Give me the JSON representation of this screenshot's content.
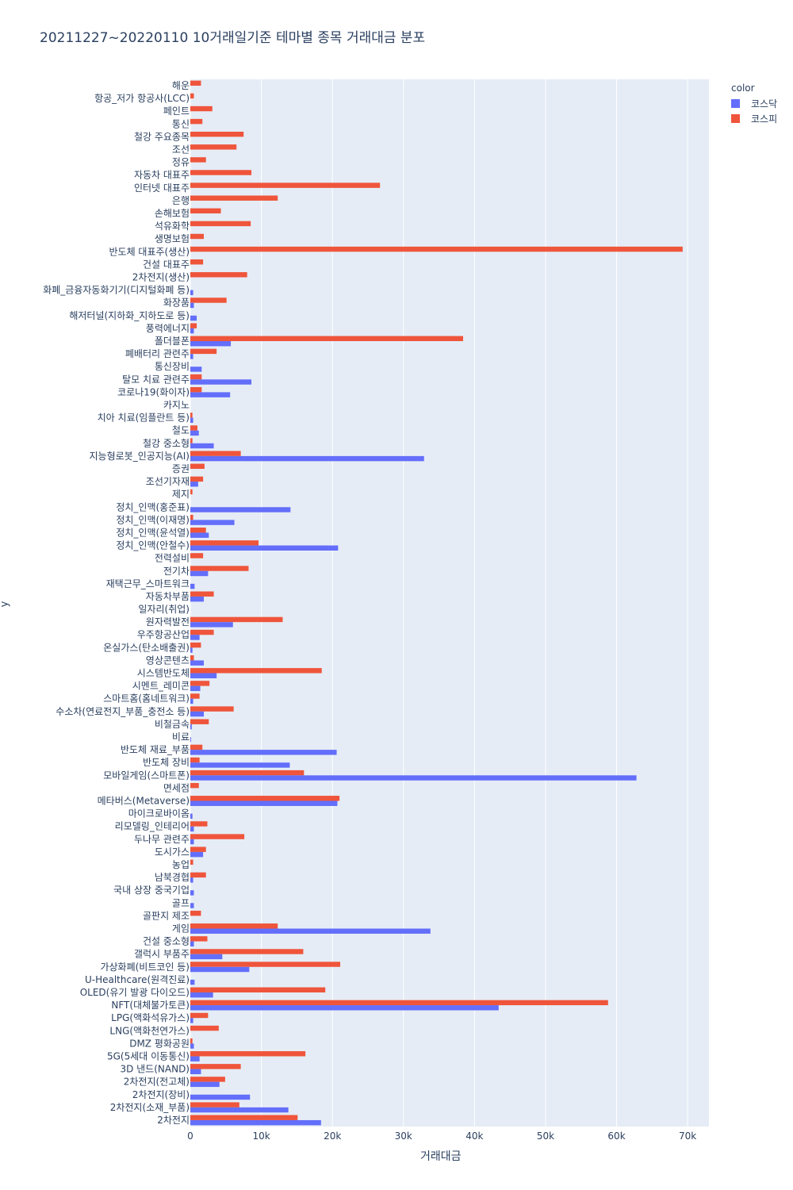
{
  "chart_data": {
    "type": "bar",
    "orientation": "horizontal",
    "barmode": "group",
    "title": "20211227~20220110 10거래일기준 테마별 종목 거래대금 분포",
    "xlabel": "거래대금",
    "ylabel": "y",
    "legend_title": "color",
    "legend_position": "top-right",
    "xlim": [
      0,
      73000
    ],
    "x_ticks": [
      0,
      10000,
      20000,
      30000,
      40000,
      50000,
      60000,
      70000
    ],
    "x_tick_labels": [
      "0",
      "10k",
      "20k",
      "30k",
      "40k",
      "50k",
      "60k",
      "70k"
    ],
    "grid": true,
    "series": [
      {
        "name": "코스닥",
        "color": "#636efa"
      },
      {
        "name": "코스피",
        "color": "#ef553b"
      }
    ],
    "categories": [
      {
        "label": "해운",
        "kosdaq": 0,
        "kospi": 1500
      },
      {
        "label": "항공_저가 항공사(LCC)",
        "kosdaq": 0,
        "kospi": 500
      },
      {
        "label": "페인트",
        "kosdaq": 0,
        "kospi": 3100
      },
      {
        "label": "통신",
        "kosdaq": 0,
        "kospi": 1700
      },
      {
        "label": "철강 주요종목",
        "kosdaq": 0,
        "kospi": 7500
      },
      {
        "label": "조선",
        "kosdaq": 0,
        "kospi": 6500
      },
      {
        "label": "정유",
        "kosdaq": 0,
        "kospi": 2200
      },
      {
        "label": "자동차 대표주",
        "kosdaq": 0,
        "kospi": 8600
      },
      {
        "label": "인터넷 대표주",
        "kosdaq": 0,
        "kospi": 26700
      },
      {
        "label": "은행",
        "kosdaq": 0,
        "kospi": 12300
      },
      {
        "label": "손해보험",
        "kosdaq": 0,
        "kospi": 4300
      },
      {
        "label": "석유화학",
        "kosdaq": 0,
        "kospi": 8500
      },
      {
        "label": "생명보험",
        "kosdaq": 0,
        "kospi": 1900
      },
      {
        "label": "반도체 대표주(생산)",
        "kosdaq": 0,
        "kospi": 69300
      },
      {
        "label": "건설 대표주",
        "kosdaq": 0,
        "kospi": 1800
      },
      {
        "label": "2차전지(생산)",
        "kosdaq": 0,
        "kospi": 8000
      },
      {
        "label": "화폐_금융자동화기기(디지털화폐 등)",
        "kosdaq": 400,
        "kospi": 0
      },
      {
        "label": "화장품",
        "kosdaq": 500,
        "kospi": 5100
      },
      {
        "label": "해저터널(지하화_지하도로 등)",
        "kosdaq": 900,
        "kospi": 0
      },
      {
        "label": "풍력에너지",
        "kosdaq": 500,
        "kospi": 900
      },
      {
        "label": "폴더블폰",
        "kosdaq": 5700,
        "kospi": 38400
      },
      {
        "label": "폐배터리 관련주",
        "kosdaq": 400,
        "kospi": 3700
      },
      {
        "label": "통신장비",
        "kosdaq": 1600,
        "kospi": 0
      },
      {
        "label": "탈모 치료 관련주",
        "kosdaq": 8600,
        "kospi": 1600
      },
      {
        "label": "코로나19(화이자)",
        "kosdaq": 5600,
        "kospi": 1600
      },
      {
        "label": "카지노",
        "kosdaq": 0,
        "kospi": 0
      },
      {
        "label": "치아 치료(임플란트 등)",
        "kosdaq": 400,
        "kospi": 300
      },
      {
        "label": "철도",
        "kosdaq": 1200,
        "kospi": 1000
      },
      {
        "label": "철강 중소형",
        "kosdaq": 3300,
        "kospi": 300
      },
      {
        "label": "지능형로봇_인공지능(AI)",
        "kosdaq": 32900,
        "kospi": 7100
      },
      {
        "label": "증권",
        "kosdaq": 0,
        "kospi": 2000
      },
      {
        "label": "조선기자재",
        "kosdaq": 1100,
        "kospi": 1800
      },
      {
        "label": "제지",
        "kosdaq": 0,
        "kospi": 300
      },
      {
        "label": "정치_인맥(홍준표)",
        "kosdaq": 14100,
        "kospi": 0
      },
      {
        "label": "정치_인맥(이재명)",
        "kosdaq": 6200,
        "kospi": 400
      },
      {
        "label": "정치_인맥(윤석열)",
        "kosdaq": 2600,
        "kospi": 2200
      },
      {
        "label": "정치_인맥(안철수)",
        "kosdaq": 20800,
        "kospi": 9600
      },
      {
        "label": "전력설비",
        "kosdaq": 0,
        "kospi": 1800
      },
      {
        "label": "전기차",
        "kosdaq": 2500,
        "kospi": 8200
      },
      {
        "label": "재택근무_스마트워크",
        "kosdaq": 600,
        "kospi": 0
      },
      {
        "label": "자동차부품",
        "kosdaq": 1900,
        "kospi": 3300
      },
      {
        "label": "일자리(취업)",
        "kosdaq": 0,
        "kospi": 0
      },
      {
        "label": "원자력발전",
        "kosdaq": 6000,
        "kospi": 13000
      },
      {
        "label": "우주항공산업",
        "kosdaq": 1300,
        "kospi": 3300
      },
      {
        "label": "온실가스(탄소배출권)",
        "kosdaq": 300,
        "kospi": 1500
      },
      {
        "label": "영상콘텐츠",
        "kosdaq": 1900,
        "kospi": 500
      },
      {
        "label": "시스템반도체",
        "kosdaq": 3700,
        "kospi": 18500
      },
      {
        "label": "시멘트_레미콘",
        "kosdaq": 1400,
        "kospi": 2700
      },
      {
        "label": "스마트홈(홈네트워크)",
        "kosdaq": 400,
        "kospi": 1300
      },
      {
        "label": "수소차(연료전지_부품_충전소 등)",
        "kosdaq": 1900,
        "kospi": 6100
      },
      {
        "label": "비철금속",
        "kosdaq": 200,
        "kospi": 2600
      },
      {
        "label": "비료",
        "kosdaq": 100,
        "kospi": 0
      },
      {
        "label": "반도체 재료_부품",
        "kosdaq": 20600,
        "kospi": 1700
      },
      {
        "label": "반도체 장비",
        "kosdaq": 14000,
        "kospi": 1300
      },
      {
        "label": "모바일게임(스마트폰)",
        "kosdaq": 62800,
        "kospi": 16000
      },
      {
        "label": "면세점",
        "kosdaq": 0,
        "kospi": 1200
      },
      {
        "label": "메타버스(Metaverse)",
        "kosdaq": 20700,
        "kospi": 21000
      },
      {
        "label": "마이크로바이옴",
        "kosdaq": 300,
        "kospi": 0
      },
      {
        "label": "리모델링_인테리어",
        "kosdaq": 500,
        "kospi": 2400
      },
      {
        "label": "두나무 관련주",
        "kosdaq": 500,
        "kospi": 7600
      },
      {
        "label": "도시가스",
        "kosdaq": 1800,
        "kospi": 2200
      },
      {
        "label": "농업",
        "kosdaq": 0,
        "kospi": 400
      },
      {
        "label": "남북경협",
        "kosdaq": 400,
        "kospi": 2200
      },
      {
        "label": "국내 상장 중국기업",
        "kosdaq": 500,
        "kospi": 0
      },
      {
        "label": "골프",
        "kosdaq": 500,
        "kospi": 0
      },
      {
        "label": "골판지 제조",
        "kosdaq": 0,
        "kospi": 1500
      },
      {
        "label": "게임",
        "kosdaq": 33800,
        "kospi": 12300
      },
      {
        "label": "건설 중소형",
        "kosdaq": 500,
        "kospi": 2400
      },
      {
        "label": "갤럭시 부품주",
        "kosdaq": 4500,
        "kospi": 15900
      },
      {
        "label": "가상화폐(비트코인 등)",
        "kosdaq": 8300,
        "kospi": 21100
      },
      {
        "label": "U-Healthcare(원격진료)",
        "kosdaq": 600,
        "kospi": 0
      },
      {
        "label": "OLED(유기 발광 다이오드)",
        "kosdaq": 3200,
        "kospi": 19000
      },
      {
        "label": "NFT(대체불가토큰)",
        "kosdaq": 43400,
        "kospi": 58800
      },
      {
        "label": "LPG(액화석유가스)",
        "kosdaq": 400,
        "kospi": 2500
      },
      {
        "label": "LNG(액화천연가스)",
        "kosdaq": 0,
        "kospi": 4000
      },
      {
        "label": "DMZ 평화공원",
        "kosdaq": 500,
        "kospi": 300
      },
      {
        "label": "5G(5세대 이동통신)",
        "kosdaq": 1300,
        "kospi": 16200
      },
      {
        "label": "3D 낸드(NAND)",
        "kosdaq": 1500,
        "kospi": 7100
      },
      {
        "label": "2차전지(전고체)",
        "kosdaq": 4100,
        "kospi": 4900
      },
      {
        "label": "2차전지(장비)",
        "kosdaq": 8400,
        "kospi": 0
      },
      {
        "label": "2차전지(소재_부품)",
        "kosdaq": 13800,
        "kospi": 6900
      },
      {
        "label": "2차전지",
        "kosdaq": 18400,
        "kospi": 15100
      }
    ]
  }
}
